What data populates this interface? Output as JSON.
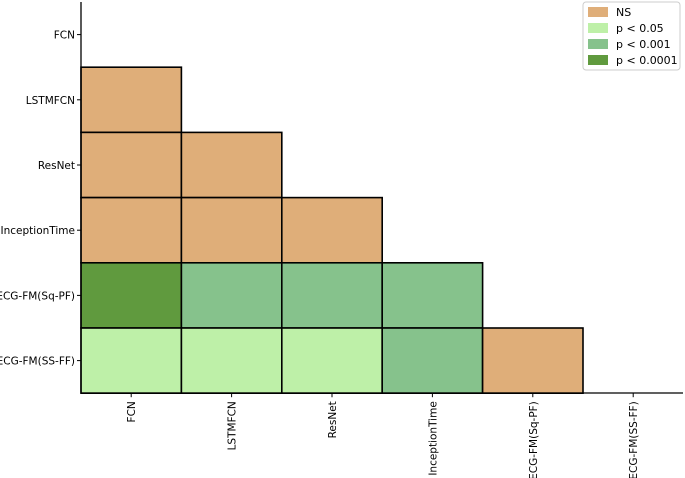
{
  "chart_data": {
    "type": "heatmap",
    "title": "",
    "xlabel": "",
    "ylabel": "",
    "labels": [
      "FCN",
      "LSTMFCN",
      "ResNet",
      "InceptionTime",
      "ECG-FM(Sq-PF)",
      "ECG-FM(SS-FF)"
    ],
    "x_categories": [
      "FCN",
      "LSTMFCN",
      "ResNet",
      "InceptionTime",
      "ECG-FM(Sq-PF)",
      "ECG-FM(SS-FF)"
    ],
    "y_categories": [
      "FCN",
      "LSTMFCN",
      "ResNet",
      "InceptionTime",
      "ECG-FM(Sq-PF)",
      "ECG-FM(SS-FF)"
    ],
    "matrix_shape": "lower-triangle",
    "cells": [
      {
        "row": "LSTMFCN",
        "col": "FCN",
        "category": "NS"
      },
      {
        "row": "ResNet",
        "col": "FCN",
        "category": "NS"
      },
      {
        "row": "ResNet",
        "col": "LSTMFCN",
        "category": "NS"
      },
      {
        "row": "InceptionTime",
        "col": "FCN",
        "category": "NS"
      },
      {
        "row": "InceptionTime",
        "col": "LSTMFCN",
        "category": "NS"
      },
      {
        "row": "InceptionTime",
        "col": "ResNet",
        "category": "NS"
      },
      {
        "row": "ECG-FM(Sq-PF)",
        "col": "FCN",
        "category": "p < 0.0001"
      },
      {
        "row": "ECG-FM(Sq-PF)",
        "col": "LSTMFCN",
        "category": "p < 0.001"
      },
      {
        "row": "ECG-FM(Sq-PF)",
        "col": "ResNet",
        "category": "p < 0.001"
      },
      {
        "row": "ECG-FM(Sq-PF)",
        "col": "InceptionTime",
        "category": "p < 0.001"
      },
      {
        "row": "ECG-FM(SS-FF)",
        "col": "FCN",
        "category": "p < 0.05"
      },
      {
        "row": "ECG-FM(SS-FF)",
        "col": "LSTMFCN",
        "category": "p < 0.05"
      },
      {
        "row": "ECG-FM(SS-FF)",
        "col": "ResNet",
        "category": "p < 0.05"
      },
      {
        "row": "ECG-FM(SS-FF)",
        "col": "InceptionTime",
        "category": "p < 0.001"
      },
      {
        "row": "ECG-FM(SS-FF)",
        "col": "ECG-FM(Sq-PF)",
        "category": "NS"
      }
    ],
    "legend": {
      "position": "top-right",
      "items": [
        {
          "label": "NS",
          "color": "#dfae79"
        },
        {
          "label": "p < 0.05",
          "color": "#bef0a8"
        },
        {
          "label": "p < 0.001",
          "color": "#86c28c"
        },
        {
          "label": "p < 0.0001",
          "color": "#609a3e"
        }
      ]
    },
    "grid": false
  }
}
